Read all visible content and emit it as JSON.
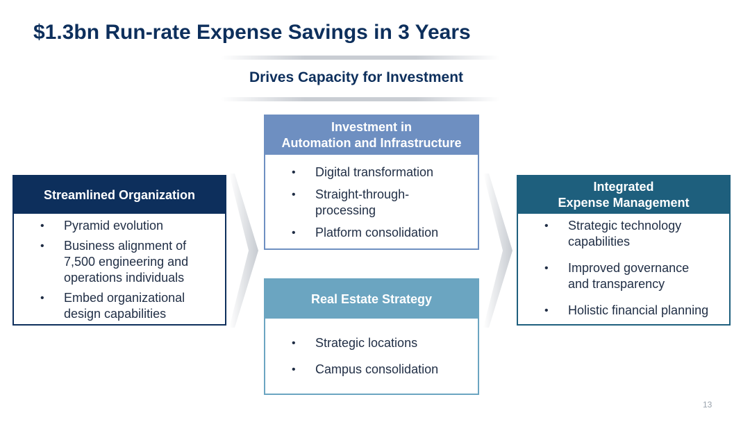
{
  "title": "$1.3bn Run-rate Expense Savings in 3 Years",
  "banner": "Drives Capacity for Investment",
  "left_box": {
    "header": "Streamlined Organization",
    "bullets": [
      "Pyramid evolution",
      "Business alignment of 7,500 engineering and operations individuals",
      "Embed organizational design capabilities"
    ]
  },
  "center_top_box": {
    "header_line1": "Investment in",
    "header_line2": "Automation and Infrastructure",
    "bullets": [
      "Digital transformation",
      "Straight-through-processing",
      "Platform consolidation"
    ]
  },
  "center_bottom_box": {
    "header": "Real Estate Strategy",
    "bullets": [
      "Strategic locations",
      "Campus consolidation"
    ]
  },
  "right_box": {
    "header_line1": "Integrated",
    "header_line2": "Expense Management",
    "bullets": [
      "Strategic technology capabilities",
      "Improved governance and transparency",
      "Holistic financial planning"
    ]
  },
  "page_number": "13",
  "colors": {
    "navy": "#0d2f5c",
    "periwinkle": "#6e8fc1",
    "steel_blue": "#6ba5c1",
    "teal": "#1e5f7d"
  }
}
